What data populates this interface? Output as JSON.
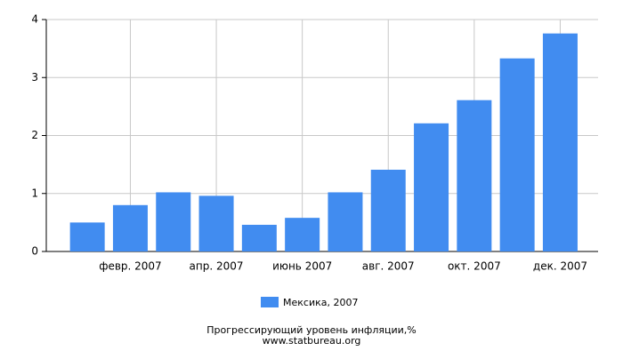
{
  "chart_data": {
    "type": "bar",
    "title": "Прогрессирующий уровень инфляции,%",
    "subtitle": "www.statbureau.org",
    "categories": [
      null,
      "февр. 2007",
      null,
      "апр. 2007",
      null,
      "июнь 2007",
      null,
      "авг. 2007",
      null,
      "окт. 2007",
      null,
      "дек. 2007"
    ],
    "series": [
      {
        "name": "Мексика, 2007",
        "color": "#418cf0",
        "values": [
          0.5,
          0.8,
          1.02,
          0.96,
          0.46,
          0.58,
          1.02,
          1.41,
          2.21,
          2.61,
          3.33,
          3.76
        ]
      }
    ],
    "ylim": [
      0,
      4
    ],
    "yticks": [
      0,
      1,
      2,
      3,
      4
    ],
    "grid": true,
    "legend": "bottom"
  }
}
